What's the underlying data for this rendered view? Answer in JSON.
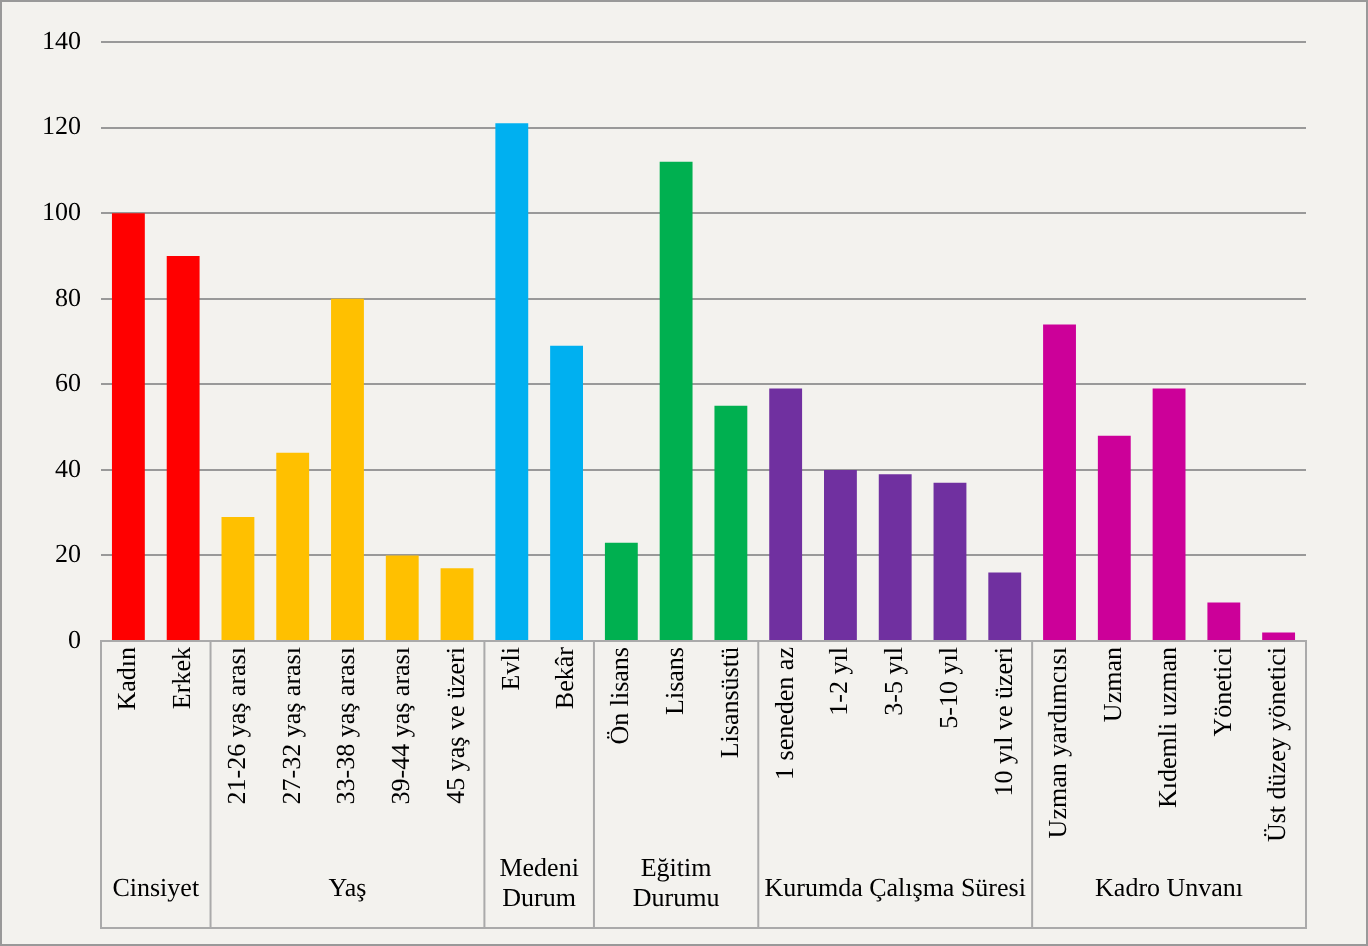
{
  "chart_data": {
    "type": "bar",
    "categories": [
      "Kadın",
      "Erkek",
      "21-26 yaş arası",
      "27-32 yaş arası",
      "33-38 yaş arası",
      "39-44 yaş arası",
      "45 yaş ve üzeri",
      "Evli",
      "Bekâr",
      "Ön lisans",
      "Lisans",
      "Lisansüstü",
      "1 seneden az",
      "1-2 yıl",
      "3-5 yıl",
      "5-10 yıl",
      "10 yıl ve üzeri",
      "Uzman yardımcısı",
      "Uzman",
      "Kıdemli uzman",
      "Yönetici",
      "Üst düzey yönetici"
    ],
    "values": [
      100,
      90,
      29,
      44,
      80,
      20,
      17,
      121,
      69,
      23,
      112,
      55,
      59,
      40,
      39,
      37,
      16,
      74,
      48,
      59,
      9,
      2
    ],
    "colors": [
      "#ff0000",
      "#ff0000",
      "#ffc000",
      "#ffc000",
      "#ffc000",
      "#ffc000",
      "#ffc000",
      "#00b0f0",
      "#00b0f0",
      "#00b050",
      "#00b050",
      "#00b050",
      "#7030a0",
      "#7030a0",
      "#7030a0",
      "#7030a0",
      "#7030a0",
      "#cc0099",
      "#cc0099",
      "#cc0099",
      "#cc0099",
      "#cc0099"
    ],
    "ylim": [
      0,
      140
    ],
    "yticks": [
      0,
      20,
      40,
      60,
      80,
      100,
      120,
      140
    ],
    "grid": "y",
    "legend": false,
    "annotations": [
      "Cinsiyet",
      "Yaş",
      "Medeni Durum",
      "Eğitim Durumu",
      "Kurumda Çalışma Süresi",
      "Kadro Unvanı"
    ]
  }
}
